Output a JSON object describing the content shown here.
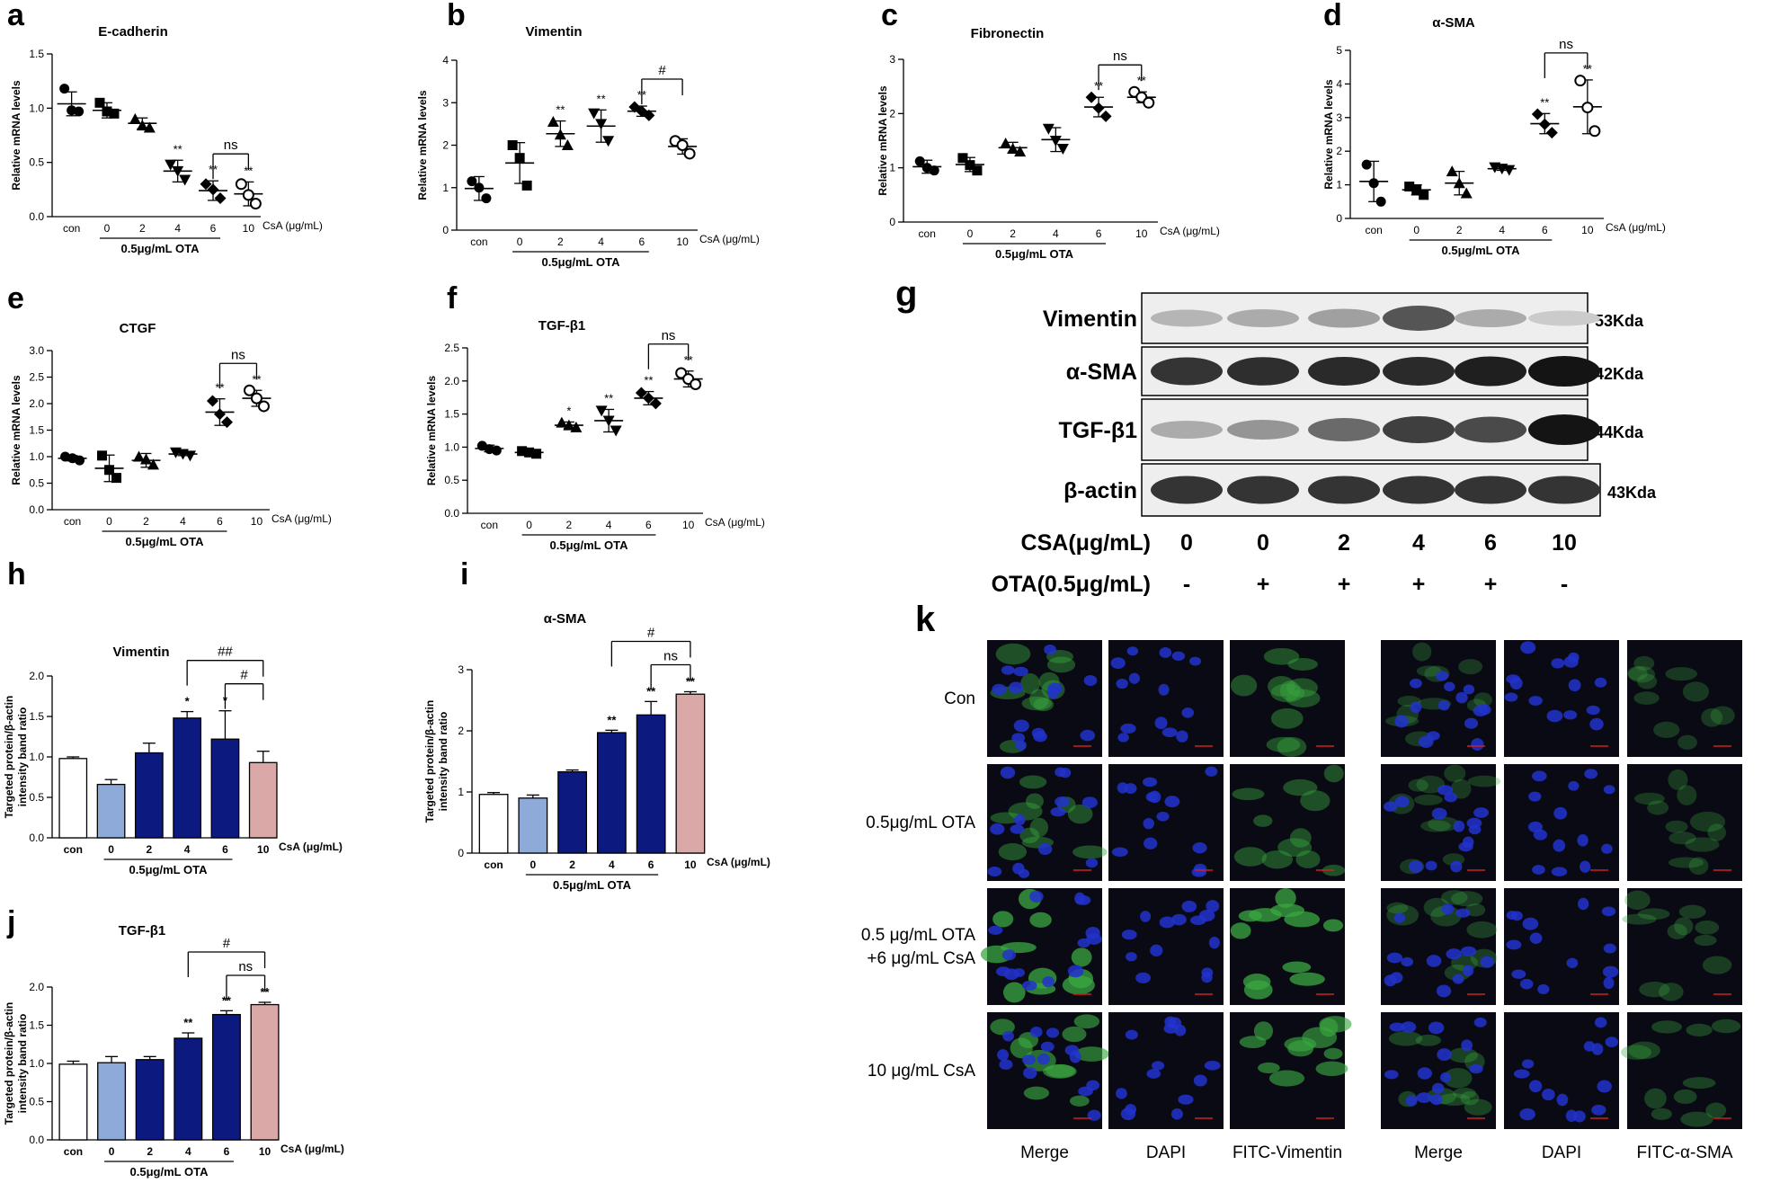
{
  "figure": {
    "panels": [
      {
        "letter": "a",
        "chart_index": 0
      },
      {
        "letter": "b",
        "chart_index": 1
      },
      {
        "letter": "c",
        "chart_index": 2
      },
      {
        "letter": "d",
        "chart_index": 3
      },
      {
        "letter": "e",
        "chart_index": 4
      },
      {
        "letter": "f",
        "chart_index": 5
      },
      {
        "letter": "g",
        "blot_index": 0
      },
      {
        "letter": "h",
        "chart_index": 6
      },
      {
        "letter": "i",
        "chart_index": 7
      },
      {
        "letter": "j",
        "chart_index": 8
      },
      {
        "letter": "k",
        "micro_index": 0
      }
    ],
    "colors": {
      "axis": "#000000",
      "bar_con": "#ffffff",
      "bar_ota": "#8eaad8",
      "bar_treated": "#0c1a80",
      "bar_csa": "#dba8a8",
      "micro_bg": "#0a0a14",
      "nucleus": "#2233cc",
      "fitc": "#3aa840",
      "scalebar": "#cc2222"
    }
  },
  "chart_data": [
    {
      "type": "scatter",
      "title": "E-cadherin",
      "ylabel": "Relative mRNA levels",
      "categories": [
        "con",
        "0",
        "2",
        "4",
        "6",
        "10"
      ],
      "x_suffix": "CsA (μg/mL)",
      "group_label": "0.5μg/mL OTA",
      "ylim": [
        0,
        1.5
      ],
      "yticks": [
        0.0,
        0.5,
        1.0,
        1.5
      ],
      "groups": [
        {
          "mean": 1.04,
          "sd": 0.11,
          "marker": "circle",
          "points": [
            1.18,
            0.98,
            0.97
          ]
        },
        {
          "mean": 0.98,
          "sd": 0.07,
          "marker": "square",
          "points": [
            1.05,
            0.97,
            0.95
          ]
        },
        {
          "mean": 0.86,
          "sd": 0.05,
          "marker": "triangle",
          "points": [
            0.9,
            0.84,
            0.82
          ]
        },
        {
          "mean": 0.42,
          "sd": 0.1,
          "marker": "triangle-down",
          "points": [
            0.48,
            0.42,
            0.34
          ]
        },
        {
          "mean": 0.24,
          "sd": 0.09,
          "marker": "diamond",
          "points": [
            0.3,
            0.25,
            0.17
          ]
        },
        {
          "mean": 0.21,
          "sd": 0.11,
          "marker": "circle-open",
          "points": [
            0.3,
            0.2,
            0.12
          ]
        }
      ],
      "stars": [
        "",
        "",
        "",
        "**",
        "**",
        "**"
      ],
      "brackets": [
        {
          "from": 4,
          "to": 5,
          "label": "ns"
        }
      ]
    },
    {
      "type": "scatter",
      "title": "Vimentin",
      "ylabel": "Relative mRNA levels",
      "categories": [
        "con",
        "0",
        "2",
        "4",
        "6",
        "10"
      ],
      "x_suffix": "CsA (μg/mL)",
      "group_label": "0.5μg/mL OTA",
      "ylim": [
        0,
        4
      ],
      "yticks": [
        0,
        1,
        2,
        3,
        4
      ],
      "groups": [
        {
          "mean": 0.98,
          "sd": 0.28,
          "marker": "circle",
          "points": [
            1.15,
            1.0,
            0.75
          ]
        },
        {
          "mean": 1.58,
          "sd": 0.48,
          "marker": "square",
          "points": [
            2.0,
            1.7,
            1.05
          ]
        },
        {
          "mean": 2.27,
          "sd": 0.3,
          "marker": "triangle",
          "points": [
            2.55,
            2.25,
            2.0
          ]
        },
        {
          "mean": 2.45,
          "sd": 0.38,
          "marker": "triangle-down",
          "points": [
            2.75,
            2.5,
            2.1
          ]
        },
        {
          "mean": 2.8,
          "sd": 0.12,
          "marker": "diamond",
          "points": [
            2.9,
            2.8,
            2.7
          ]
        },
        {
          "mean": 1.97,
          "sd": 0.18,
          "marker": "circle-open",
          "points": [
            2.1,
            2.0,
            1.8
          ]
        }
      ],
      "stars": [
        "",
        "",
        "**",
        "**",
        "**",
        ""
      ],
      "brackets": [
        {
          "from": 4,
          "to": 5,
          "label": "#"
        }
      ]
    },
    {
      "type": "scatter",
      "title": "Fibronectin",
      "ylabel": "Relative mRNA levels",
      "categories": [
        "con",
        "0",
        "2",
        "4",
        "6",
        "10"
      ],
      "x_suffix": "CsA (μg/mL)",
      "group_label": "0.5μg/mL OTA",
      "ylim": [
        0,
        3
      ],
      "yticks": [
        0,
        1,
        2,
        3
      ],
      "groups": [
        {
          "mean": 1.02,
          "sd": 0.12,
          "marker": "circle",
          "points": [
            1.12,
            1.0,
            0.95
          ]
        },
        {
          "mean": 1.06,
          "sd": 0.13,
          "marker": "square",
          "points": [
            1.18,
            1.05,
            0.95
          ]
        },
        {
          "mean": 1.37,
          "sd": 0.1,
          "marker": "triangle",
          "points": [
            1.45,
            1.35,
            1.3
          ]
        },
        {
          "mean": 1.52,
          "sd": 0.22,
          "marker": "triangle-down",
          "points": [
            1.72,
            1.5,
            1.35
          ]
        },
        {
          "mean": 2.12,
          "sd": 0.18,
          "marker": "diamond",
          "points": [
            2.3,
            2.1,
            1.95
          ]
        },
        {
          "mean": 2.3,
          "sd": 0.1,
          "marker": "circle-open",
          "points": [
            2.4,
            2.3,
            2.2
          ]
        }
      ],
      "stars": [
        "",
        "",
        "",
        "",
        "**",
        "**"
      ],
      "brackets": [
        {
          "from": 4,
          "to": 5,
          "label": "ns"
        }
      ]
    },
    {
      "type": "scatter",
      "title": "α-SMA",
      "ylabel": "Relative mRNA levels",
      "categories": [
        "con",
        "0",
        "2",
        "4",
        "6",
        "10"
      ],
      "x_suffix": "CsA (μg/mL)",
      "group_label": "0.5μg/mL OTA",
      "ylim": [
        0,
        5
      ],
      "yticks": [
        0,
        1,
        2,
        3,
        4,
        5
      ],
      "groups": [
        {
          "mean": 1.1,
          "sd": 0.6,
          "marker": "circle",
          "points": [
            1.6,
            1.05,
            0.5
          ]
        },
        {
          "mean": 0.85,
          "sd": 0.15,
          "marker": "square",
          "points": [
            0.95,
            0.85,
            0.7
          ]
        },
        {
          "mean": 1.05,
          "sd": 0.35,
          "marker": "triangle",
          "points": [
            1.4,
            1.05,
            0.75
          ]
        },
        {
          "mean": 1.48,
          "sd": 0.05,
          "marker": "triangle-down",
          "points": [
            1.52,
            1.48,
            1.44
          ]
        },
        {
          "mean": 2.82,
          "sd": 0.3,
          "marker": "diamond",
          "points": [
            3.1,
            2.8,
            2.55
          ]
        },
        {
          "mean": 3.32,
          "sd": 0.8,
          "marker": "circle-open",
          "points": [
            4.1,
            3.3,
            2.6
          ]
        }
      ],
      "stars": [
        "",
        "",
        "",
        "",
        "**",
        "**"
      ],
      "brackets": [
        {
          "from": 4,
          "to": 5,
          "label": "ns"
        }
      ]
    },
    {
      "type": "scatter",
      "title": "CTGF",
      "ylabel": "Relative mRNA levels",
      "categories": [
        "con",
        "0",
        "2",
        "4",
        "6",
        "10"
      ],
      "x_suffix": "CsA (μg/mL)",
      "group_label": "0.5μg/mL OTA",
      "ylim": [
        0,
        3.0
      ],
      "yticks": [
        0.0,
        0.5,
        1.0,
        1.5,
        2.0,
        2.5,
        3.0
      ],
      "groups": [
        {
          "mean": 0.97,
          "sd": 0.05,
          "marker": "circle",
          "points": [
            1.0,
            0.97,
            0.93
          ]
        },
        {
          "mean": 0.78,
          "sd": 0.25,
          "marker": "square",
          "points": [
            1.02,
            0.75,
            0.6
          ]
        },
        {
          "mean": 0.93,
          "sd": 0.13,
          "marker": "triangle",
          "points": [
            1.0,
            0.95,
            0.85
          ]
        },
        {
          "mean": 1.05,
          "sd": 0.03,
          "marker": "triangle-down",
          "points": [
            1.08,
            1.05,
            1.02
          ]
        },
        {
          "mean": 1.84,
          "sd": 0.25,
          "marker": "diamond",
          "points": [
            2.05,
            1.8,
            1.65
          ]
        },
        {
          "mean": 2.1,
          "sd": 0.15,
          "marker": "circle-open",
          "points": [
            2.25,
            2.1,
            1.95
          ]
        }
      ],
      "stars": [
        "",
        "",
        "",
        "",
        "**",
        "**"
      ],
      "brackets": [
        {
          "from": 4,
          "to": 5,
          "label": "ns"
        }
      ]
    },
    {
      "type": "scatter",
      "title": "TGF-β1",
      "ylabel": "Relative mRNA levels",
      "categories": [
        "con",
        "0",
        "2",
        "4",
        "6",
        "10"
      ],
      "x_suffix": "CsA (μg/mL)",
      "group_label": "0.5μg/mL OTA",
      "ylim": [
        0,
        2.5
      ],
      "yticks": [
        0.0,
        0.5,
        1.0,
        1.5,
        2.0,
        2.5
      ],
      "groups": [
        {
          "mean": 0.98,
          "sd": 0.05,
          "marker": "circle",
          "points": [
            1.02,
            0.97,
            0.95
          ]
        },
        {
          "mean": 0.92,
          "sd": 0.03,
          "marker": "square",
          "points": [
            0.94,
            0.92,
            0.9
          ]
        },
        {
          "mean": 1.33,
          "sd": 0.05,
          "marker": "triangle",
          "points": [
            1.37,
            1.33,
            1.3
          ]
        },
        {
          "mean": 1.4,
          "sd": 0.17,
          "marker": "triangle-down",
          "points": [
            1.55,
            1.4,
            1.25
          ]
        },
        {
          "mean": 1.74,
          "sd": 0.1,
          "marker": "diamond",
          "points": [
            1.82,
            1.74,
            1.66
          ]
        },
        {
          "mean": 2.03,
          "sd": 0.12,
          "marker": "circle-open",
          "points": [
            2.12,
            2.03,
            1.95
          ]
        }
      ],
      "stars": [
        "",
        "",
        "*",
        "**",
        "**",
        "**"
      ],
      "brackets": [
        {
          "from": 4,
          "to": 5,
          "label": "ns"
        }
      ]
    },
    {
      "type": "bar",
      "title": "Vimentin",
      "ylabel": "Targeted protein/β-actin intensity band ratio",
      "categories": [
        "con",
        "0",
        "2",
        "4",
        "6",
        "10"
      ],
      "x_suffix": "CsA (μg/mL)",
      "group_label": "0.5μg/mL OTA",
      "ylim": [
        0,
        2.0
      ],
      "yticks": [
        0.0,
        0.5,
        1.0,
        1.5,
        2.0
      ],
      "values": [
        0.98,
        0.66,
        1.05,
        1.48,
        1.22,
        0.93
      ],
      "errors": [
        0.02,
        0.06,
        0.12,
        0.08,
        0.35,
        0.14
      ],
      "stars": [
        "",
        "",
        "",
        "*",
        "*",
        ""
      ],
      "brackets": [
        {
          "from": 3,
          "to": 5,
          "label": "##",
          "level": 2
        },
        {
          "from": 4,
          "to": 5,
          "label": "#",
          "level": 1
        }
      ]
    },
    {
      "type": "bar",
      "title": "α-SMA",
      "ylabel": "Targeted protein/β-actin intensity band ratio",
      "categories": [
        "con",
        "0",
        "2",
        "4",
        "6",
        "10"
      ],
      "x_suffix": "CsA (μg/mL)",
      "group_label": "0.5μg/mL OTA",
      "ylim": [
        0,
        3
      ],
      "yticks": [
        0,
        1,
        2,
        3
      ],
      "values": [
        0.96,
        0.9,
        1.33,
        1.97,
        2.26,
        2.6
      ],
      "errors": [
        0.03,
        0.05,
        0.03,
        0.04,
        0.22,
        0.04
      ],
      "stars": [
        "",
        "",
        "",
        "**",
        "**",
        "**"
      ],
      "brackets": [
        {
          "from": 3,
          "to": 5,
          "label": "#",
          "level": 2
        },
        {
          "from": 4,
          "to": 5,
          "label": "ns",
          "level": 1
        }
      ]
    },
    {
      "type": "bar",
      "title": "TGF-β1",
      "ylabel": "Targeted protein/β-actin intensity band ratio",
      "categories": [
        "con",
        "0",
        "2",
        "4",
        "6",
        "10"
      ],
      "x_suffix": "CsA (μg/mL)",
      "group_label": "0.5μg/mL OTA",
      "ylim": [
        0,
        2.0
      ],
      "yticks": [
        0.0,
        0.5,
        1.0,
        1.5,
        2.0
      ],
      "values": [
        0.99,
        1.01,
        1.05,
        1.33,
        1.64,
        1.77
      ],
      "errors": [
        0.04,
        0.08,
        0.04,
        0.07,
        0.05,
        0.03
      ],
      "stars": [
        "",
        "",
        "",
        "**",
        "**",
        "**"
      ],
      "brackets": [
        {
          "from": 3,
          "to": 5,
          "label": "#",
          "level": 2
        },
        {
          "from": 4,
          "to": 5,
          "label": "ns",
          "level": 1
        }
      ]
    }
  ],
  "blot": {
    "rows": [
      {
        "label": "Vimentin",
        "weight": "53Kda",
        "intensities": [
          0.25,
          0.3,
          0.35,
          0.7,
          0.3,
          0.15
        ]
      },
      {
        "label": "α-SMA",
        "weight": "42Kda",
        "intensities": [
          0.85,
          0.88,
          0.9,
          0.9,
          0.95,
          1.0
        ]
      },
      {
        "label": "TGF-β1",
        "weight": "44Kda",
        "intensities": [
          0.3,
          0.4,
          0.6,
          0.8,
          0.75,
          1.0
        ]
      },
      {
        "label": "β-actin",
        "weight": "43Kda",
        "intensities": [
          0.85,
          0.85,
          0.85,
          0.85,
          0.85,
          0.85
        ]
      }
    ],
    "csa_label": "CSA(μg/mL)",
    "csa_values": [
      "0",
      "0",
      "2",
      "4",
      "6",
      "10"
    ],
    "ota_label": "OTA(0.5μg/mL)",
    "ota_values": [
      "-",
      "+",
      "+",
      "+",
      "+",
      "-"
    ]
  },
  "microscopy": {
    "row_labels": [
      [
        "Con"
      ],
      [
        "0.5μg/mL OTA"
      ],
      [
        "0.5 μg/mL OTA",
        "+6 μg/mL CsA"
      ],
      [
        "10 μg/mL CsA"
      ]
    ],
    "left_columns": [
      "Merge",
      "DAPI",
      "FITC-Vimentin"
    ],
    "right_columns": [
      "Merge",
      "DAPI",
      "FITC-α-SMA"
    ],
    "left_green_levels": [
      0.35,
      0.35,
      0.9,
      0.7
    ],
    "right_green_levels": [
      0.08,
      0.1,
      0.12,
      0.18
    ]
  }
}
